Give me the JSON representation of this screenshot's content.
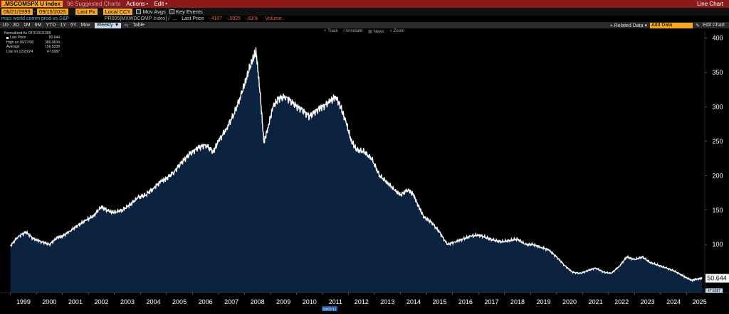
{
  "window": {
    "ticker": ".MSCOMSPX U Index",
    "ticker_suffix": "96 Suggested Charts",
    "actions_label": "Actions",
    "edit_label": "Edit",
    "chart_kind": "Line Chart"
  },
  "controls": {
    "start_date": "09/21/1999",
    "end_date": "09/15/2025",
    "field": "Last Px",
    "currency": "Local CCY",
    "mov_avgs": "Mov Avgs",
    "key_events": "Key Events"
  },
  "legend": {
    "series_desc": "msci world comm prod vs S&P",
    "index_desc": "PR005[MXWDCOMP Index] /",
    "dots": "…",
    "last_price_label": "Last Price",
    "last_price_value": "-.4107",
    "change_value": "-.0025",
    "change_pct": "-.61%",
    "volume_label": "Volume"
  },
  "range_bar": {
    "ranges": [
      "1D",
      "3D",
      "1M",
      "6M",
      "YTD",
      "1Y",
      "5Y",
      "Max"
    ],
    "frequency": "Weekly ▼",
    "table_label": "Table",
    "related_data": "+ Related Data ▾",
    "add_data": "Add Data",
    "edit_chart": "Edit Chart",
    "edit_icon": "pencil-icon"
  },
  "tools": {
    "track": "Track",
    "annotate": "Annotate",
    "news": "News",
    "zoom": "Zoom"
  },
  "stats": {
    "title": "Normalized As Of 01/01/1999",
    "last_label": "Last Price",
    "last_value": "50.644",
    "high_label": "High on 06/27/08",
    "high_value": "380.9634",
    "avg_label": "Average",
    "avg_value": "156.9338",
    "low_label": "Low on 12/20/24",
    "low_value": "47.6087"
  },
  "colors": {
    "line": "#ffffff",
    "fill": "#0c2340",
    "background": "#000000",
    "accent": "#f5a623",
    "topbar": "#8b1a1a"
  },
  "chart_data": {
    "type": "area",
    "x_axis_labels": [
      "1999",
      "2000",
      "2001",
      "2002",
      "2003",
      "2004",
      "2005",
      "2006",
      "2007",
      "2008",
      "2009",
      "2010",
      "2011",
      "2012",
      "2013",
      "2014",
      "2015",
      "2016",
      "2017",
      "2018",
      "2019",
      "2020",
      "2021",
      "2022",
      "2023",
      "2024",
      "2025"
    ],
    "y_axis_labels": [
      "100",
      "150",
      "200",
      "250",
      "300",
      "350",
      "400"
    ],
    "ylim": [
      30,
      410
    ],
    "xlim": [
      1998.6,
      2025.7
    ],
    "last_value_label": "50.644",
    "marker_label": "09/02/11",
    "min_label": "47.6087",
    "series": [
      {
        "x": [
          1999.0,
          1999.3,
          1999.6,
          1999.9,
          2000.2,
          2000.5,
          2000.8,
          2001.0,
          2001.3,
          2001.6,
          2001.9,
          2002.2,
          2002.5,
          2002.8,
          2003.0,
          2003.3,
          2003.6,
          2003.9,
          2004.2,
          2004.5,
          2004.8,
          2005.0,
          2005.3,
          2005.6,
          2005.9,
          2006.2,
          2006.5,
          2006.8,
          2007.0,
          2007.3,
          2007.6,
          2007.9,
          2008.1,
          2008.3,
          2008.45,
          2008.6,
          2008.75,
          2008.9,
          2009.1,
          2009.3,
          2009.6,
          2009.9,
          2010.2,
          2010.5,
          2010.8,
          2011.0,
          2011.3,
          2011.5,
          2011.7,
          2011.9,
          2012.1,
          2012.3,
          2012.6,
          2012.9,
          2013.2,
          2013.5,
          2013.8,
          2014.0,
          2014.3,
          2014.5,
          2014.7,
          2014.9,
          2015.2,
          2015.5,
          2015.8,
          2016.1,
          2016.4,
          2016.7,
          2017.0,
          2017.3,
          2017.6,
          2017.9,
          2018.2,
          2018.5,
          2018.8,
          2019.1,
          2019.4,
          2019.7,
          2020.0,
          2020.3,
          2020.6,
          2020.9,
          2021.2,
          2021.5,
          2021.8,
          2022.1,
          2022.4,
          2022.7,
          2023.0,
          2023.3,
          2023.6,
          2023.9,
          2024.2,
          2024.5,
          2024.8,
          2024.97,
          2025.2,
          2025.4,
          2025.6
        ],
        "values": [
          98,
          112,
          118,
          108,
          104,
          100,
          110,
          112,
          120,
          128,
          135,
          142,
          155,
          148,
          147,
          150,
          158,
          168,
          172,
          182,
          192,
          196,
          206,
          220,
          232,
          240,
          245,
          235,
          250,
          268,
          290,
          320,
          345,
          368,
          380,
          320,
          248,
          270,
          300,
          312,
          315,
          304,
          296,
          286,
          296,
          300,
          308,
          316,
          300,
          278,
          252,
          238,
          235,
          224,
          200,
          190,
          178,
          172,
          180,
          172,
          155,
          140,
          132,
          118,
          100,
          104,
          108,
          112,
          114,
          110,
          106,
          104,
          106,
          108,
          100,
          100,
          96,
          92,
          82,
          70,
          60,
          58,
          62,
          66,
          60,
          58,
          68,
          82,
          78,
          82,
          74,
          70,
          66,
          62,
          56,
          52,
          48,
          50,
          51
        ]
      }
    ]
  }
}
